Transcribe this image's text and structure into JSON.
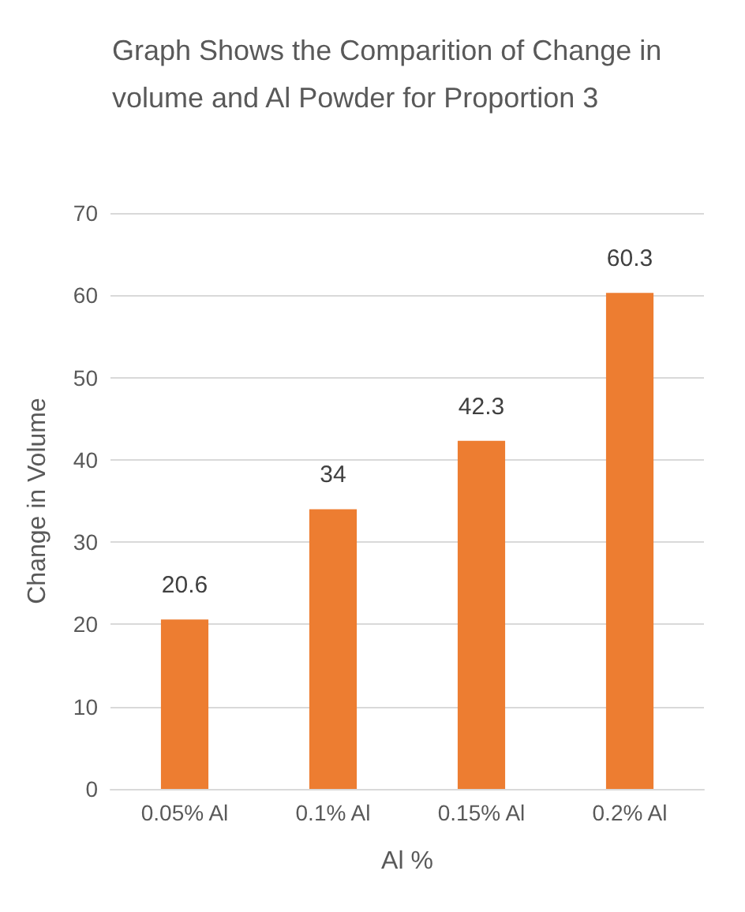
{
  "chart_data": {
    "type": "bar",
    "title": "Graph Shows the Comparition of Change in volume and Al Powder for Proportion 3",
    "xlabel": "Al %",
    "ylabel": "Change in Volume",
    "categories": [
      "0.05% Al",
      "0.1% Al",
      "0.15% Al",
      "0.2% Al"
    ],
    "values": [
      20.6,
      34,
      42.3,
      60.3
    ],
    "color": "#ed7d31",
    "ylim": [
      0,
      70
    ],
    "yticks": [
      0,
      10,
      20,
      30,
      40,
      50,
      60,
      70
    ],
    "grid": "y",
    "data_labels": true
  }
}
